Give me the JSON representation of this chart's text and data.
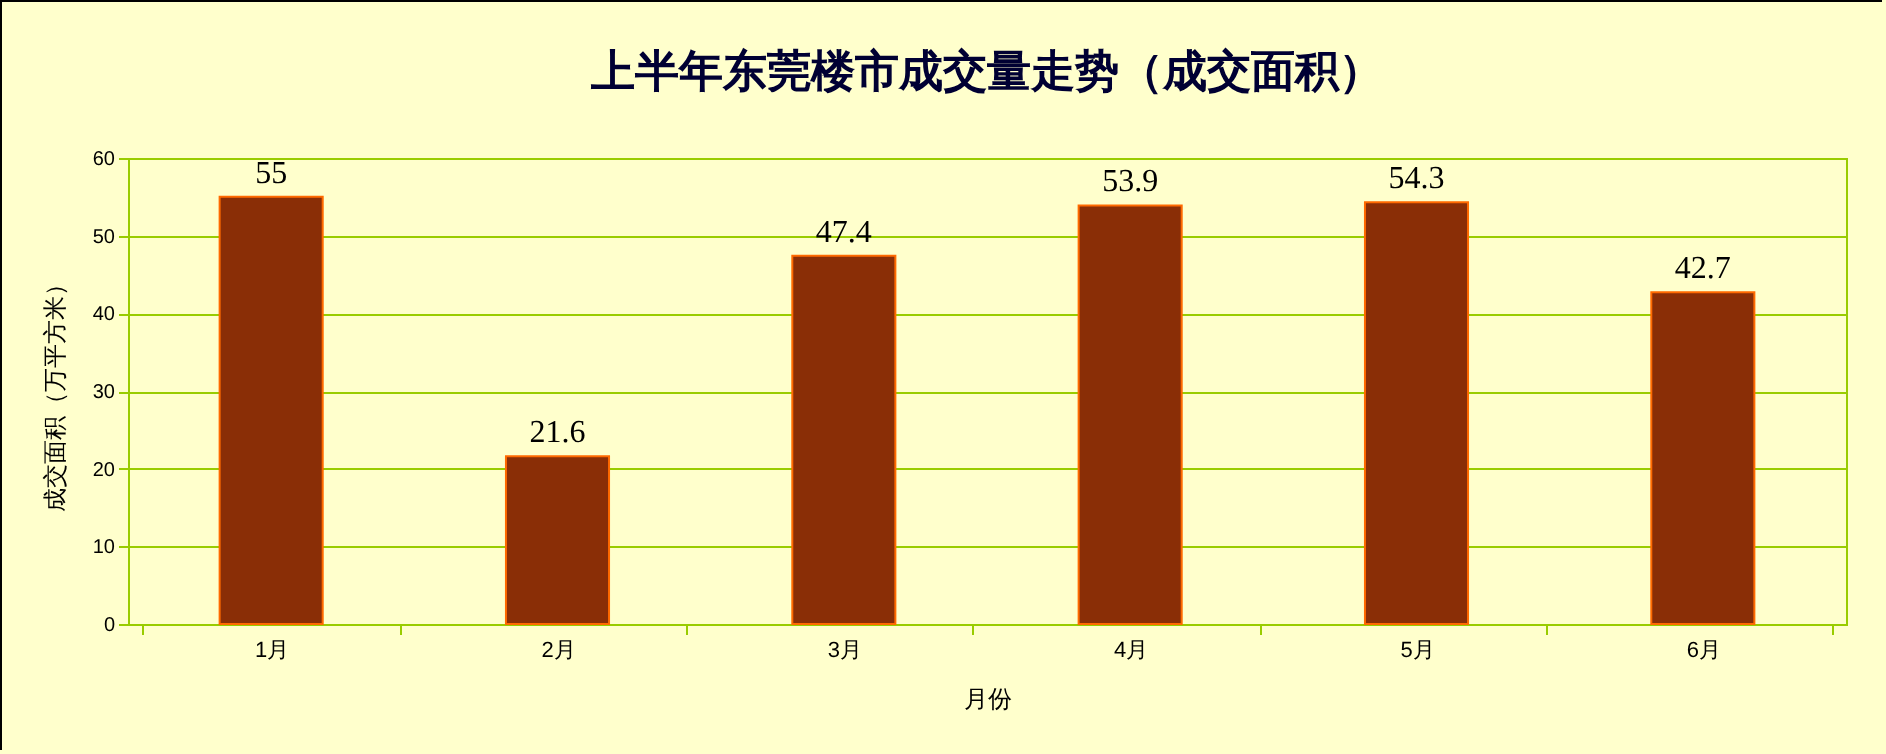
{
  "chart_data": {
    "type": "bar",
    "title": "上半年东莞楼市成交量走势（成交面积）",
    "xlabel": "月份",
    "ylabel": "成交面积（万平方米）",
    "categories": [
      "1月",
      "2月",
      "3月",
      "4月",
      "5月",
      "6月"
    ],
    "values": [
      55,
      21.6,
      47.4,
      53.9,
      54.3,
      42.7
    ],
    "color": "#8a2e06",
    "ylim": [
      0,
      60
    ],
    "yticks": [
      0,
      10,
      20,
      30,
      40,
      50,
      60
    ],
    "grid": "y",
    "data_labels": true
  }
}
